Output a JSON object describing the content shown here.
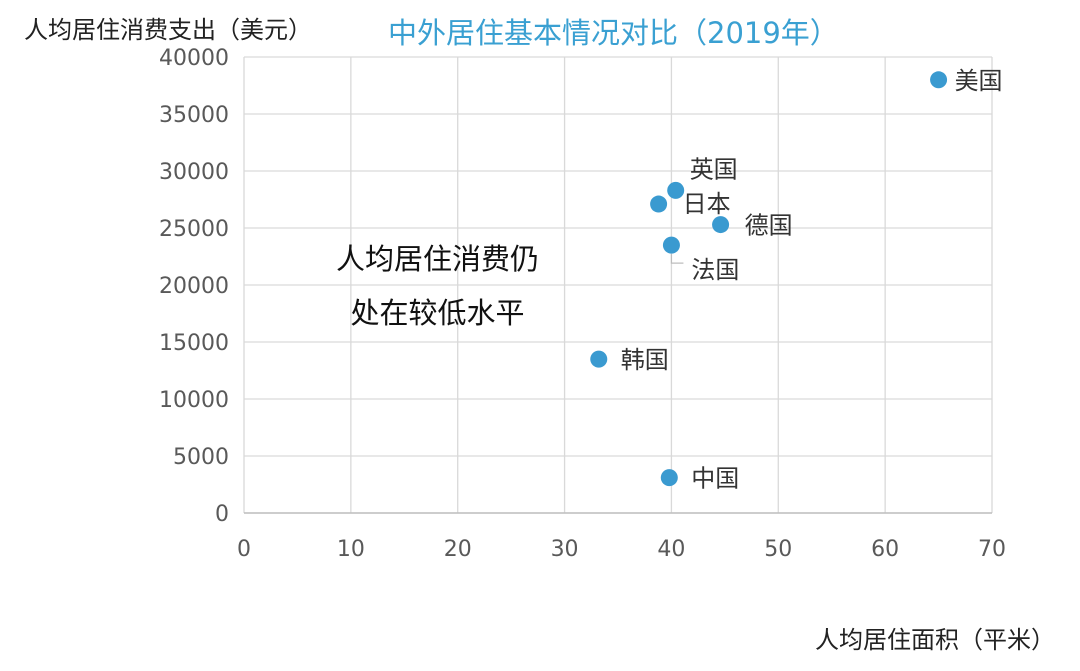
{
  "chart_data": {
    "type": "scatter",
    "title": "中外居住基本情况对比（2019年）",
    "xlabel": "人均居住面积（平米）",
    "ylabel": "人均居住消费支出（美元）",
    "xlim": [
      0,
      70
    ],
    "ylim": [
      0,
      40000
    ],
    "x_ticks": [
      0,
      10,
      20,
      30,
      40,
      50,
      60,
      70
    ],
    "y_ticks": [
      0,
      5000,
      10000,
      15000,
      20000,
      25000,
      30000,
      35000,
      40000
    ],
    "grid": true,
    "annotation": [
      "人均居住消费仍",
      "处在较低水平"
    ],
    "points": [
      {
        "label": "美国",
        "x": 65.0,
        "y": 38000
      },
      {
        "label": "英国",
        "x": 40.4,
        "y": 28300
      },
      {
        "label": "日本",
        "x": 38.8,
        "y": 27100
      },
      {
        "label": "德国",
        "x": 44.6,
        "y": 25300
      },
      {
        "label": "法国",
        "x": 40.0,
        "y": 23500
      },
      {
        "label": "韩国",
        "x": 33.2,
        "y": 13500
      },
      {
        "label": "中国",
        "x": 39.8,
        "y": 3100
      }
    ],
    "colors": {
      "point": "#3a9ad0",
      "title": "#3aa0d2",
      "grid": "#d9d9d9",
      "tick_text": "#595959"
    }
  }
}
